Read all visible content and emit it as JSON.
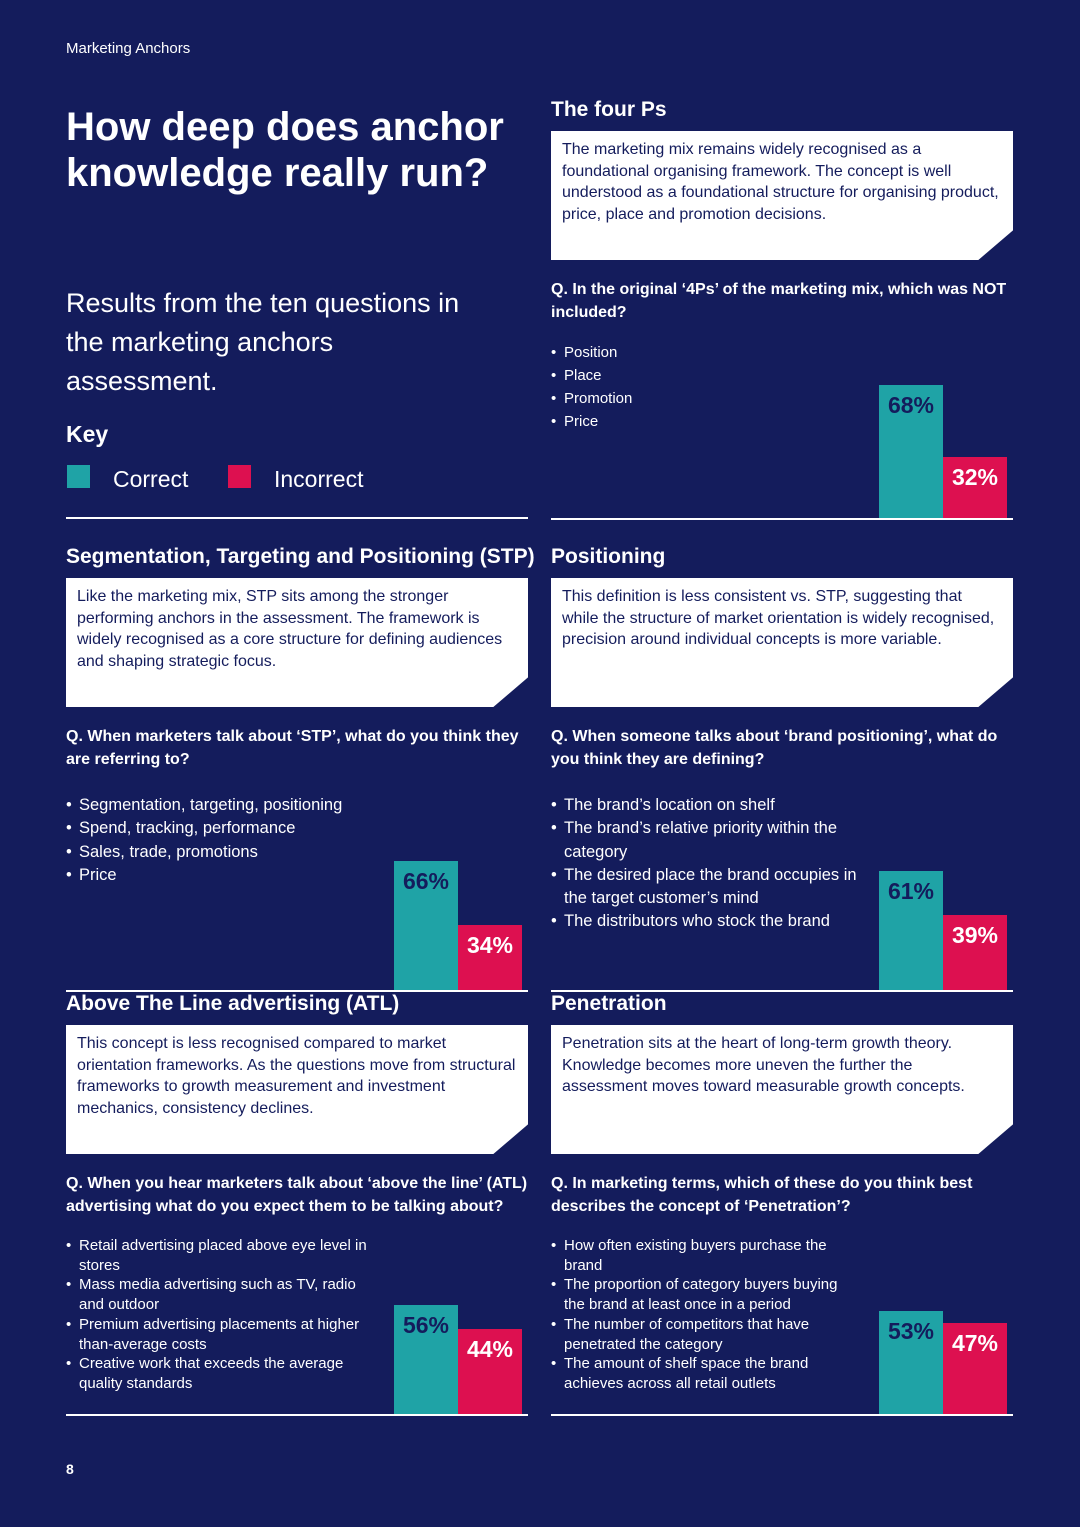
{
  "header": {
    "running_title": "Marketing Anchors"
  },
  "intro": {
    "title": "How deep does anchor knowledge really run?",
    "subtitle": "Results from the ten questions in the marketing anchors assessment."
  },
  "key": {
    "title": "Key",
    "correct_label": "Correct",
    "incorrect_label": "Incorrect",
    "correct_color": "#1fa3a6",
    "incorrect_color": "#dd1050"
  },
  "sections": [
    {
      "title": "The four Ps",
      "description": "The marketing mix remains widely recognised as a foundational organising framework. The concept is well understood as a foundational structure for organising product, price, place and promotion decisions.",
      "question": "Q. In the original ‘4Ps’ of the marketing mix, which was NOT included?",
      "options": [
        "Position",
        "Place",
        "Promotion",
        "Price"
      ],
      "correct_pct": 68,
      "incorrect_pct": 32,
      "correct_label": "68%",
      "incorrect_label": "32%"
    },
    {
      "title": "Segmentation, Targeting and Positioning (STP)",
      "description": "Like the marketing mix, STP sits among the stronger performing anchors in the assessment. The framework is widely recognised as a core structure for defining audiences and shaping strategic focus.",
      "question": "Q. When marketers talk about ‘STP’, what do you think they are referring to?",
      "options": [
        "Segmentation, targeting, positioning",
        "Spend, tracking, performance",
        "Sales, trade, promotions",
        "Price"
      ],
      "correct_pct": 66,
      "incorrect_pct": 34,
      "correct_label": "66%",
      "incorrect_label": "34%"
    },
    {
      "title": "Positioning",
      "description": "This definition is less consistent vs. STP, suggesting that while the structure of market orientation is widely recognised, precision around individual concepts is more variable.",
      "question": "Q. When someone talks about ‘brand positioning’, what do you think they are defining?",
      "options": [
        "The brand’s location on shelf",
        "The brand’s relative priority within the category",
        "The desired place the brand occupies in the target customer’s mind",
        "The distributors who stock the brand"
      ],
      "correct_pct": 61,
      "incorrect_pct": 39,
      "correct_label": "61%",
      "incorrect_label": "39%"
    },
    {
      "title": "Above The Line advertising (ATL)",
      "description": "This concept is less recognised compared to market orientation frameworks. As the questions move from structural frameworks to growth measurement and investment mechanics, consistency declines.",
      "question": "Q. When you hear marketers talk about ‘above the line’ (ATL) advertising what do you expect them to be talking about?",
      "options": [
        "Retail advertising placed above eye level in stores",
        "Mass media advertising such as TV, radio and outdoor",
        "Premium advertising placements at higher than-average costs",
        "Creative work that exceeds the average quality standards"
      ],
      "correct_pct": 56,
      "incorrect_pct": 44,
      "correct_label": "56%",
      "incorrect_label": "44%"
    },
    {
      "title": "Penetration",
      "description": "Penetration sits at the heart of long-term growth theory. Knowledge becomes more uneven the further the assessment moves toward measurable growth concepts.",
      "question": "Q. In marketing terms, which of these do you think best describes the concept of ‘Penetration’?",
      "options": [
        "How often existing buyers purchase the brand",
        "The proportion of category buyers buying the brand at least once in a period",
        "The number of competitors that have penetrated the category",
        "The amount of shelf space the brand achieves across all retail outlets"
      ],
      "correct_pct": 53,
      "incorrect_pct": 47,
      "correct_label": "53%",
      "incorrect_label": "47%"
    }
  ],
  "footer": {
    "page_number": "8"
  }
}
